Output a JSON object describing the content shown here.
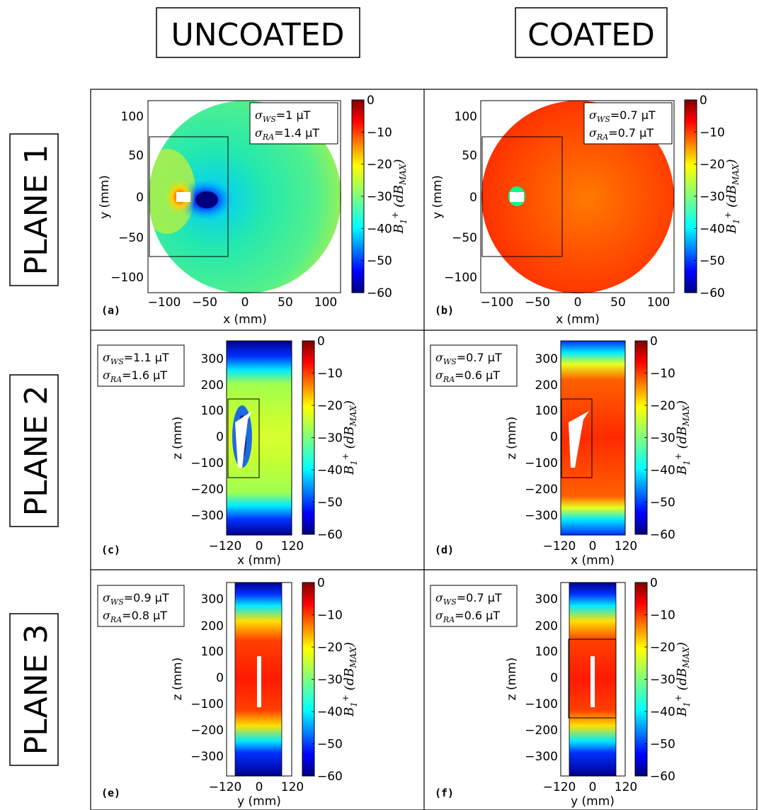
{
  "header": {
    "col1": "UNCOATED",
    "col2": "COATED"
  },
  "rows": {
    "row1": "PLANE 1",
    "row2": "PLANE 2",
    "row3": "PLANE 3"
  },
  "colorbar": {
    "ticks": [
      "0",
      "−10",
      "−20",
      "−30",
      "−40",
      "−50",
      "−60"
    ],
    "label": "B1+ (dB_MAX)",
    "range": [
      -60,
      0
    ],
    "colormap": "jet"
  },
  "chart_data": [
    {
      "type": "heatmap",
      "panel": "(a)",
      "column": "UNCOATED",
      "plane": "PLANE 1",
      "xlabel": "x (mm)",
      "ylabel": "y (mm)",
      "xticks": [
        "−100",
        "−50",
        "0",
        "50",
        "100"
      ],
      "yticks": [
        "100",
        "50",
        "0",
        "−50",
        "−100"
      ],
      "stats": {
        "ws": "1 μT",
        "ra": "1.4 μT"
      }
    },
    {
      "type": "heatmap",
      "panel": "(b)",
      "column": "COATED",
      "plane": "PLANE 1",
      "xlabel": "x (mm)",
      "ylabel": "y (mm)",
      "xticks": [
        "−100",
        "−50",
        "0",
        "50",
        "100"
      ],
      "yticks": [
        "100",
        "50",
        "0",
        "−50",
        "−100"
      ],
      "stats": {
        "ws": "0.7 μT",
        "ra": "0.7 μT"
      }
    },
    {
      "type": "heatmap",
      "panel": "(c)",
      "column": "UNCOATED",
      "plane": "PLANE 2",
      "xlabel": "x (mm)",
      "ylabel": "z (mm)",
      "xticks": [
        "−120",
        "0",
        "120"
      ],
      "yticks": [
        "300",
        "200",
        "100",
        "0",
        "−100",
        "−200",
        "−300"
      ],
      "stats": {
        "ws": "1.1 μT",
        "ra": "1.6 μT"
      }
    },
    {
      "type": "heatmap",
      "panel": "(d)",
      "column": "COATED",
      "plane": "PLANE 2",
      "xlabel": "x (mm)",
      "ylabel": "z (mm)",
      "xticks": [
        "−120",
        "0",
        "120"
      ],
      "yticks": [
        "300",
        "200",
        "100",
        "0",
        "−100",
        "−200",
        "−300"
      ],
      "stats": {
        "ws": "0.7 μT",
        "ra": "0.6 μT"
      }
    },
    {
      "type": "heatmap",
      "panel": "(e)",
      "column": "UNCOATED",
      "plane": "PLANE 3",
      "xlabel": "y (mm)",
      "ylabel": "z (mm)",
      "xticks": [
        "−120",
        "0",
        "120"
      ],
      "yticks": [
        "300",
        "200",
        "100",
        "0",
        "−100",
        "−200",
        "−300"
      ],
      "stats": {
        "ws": "0.9 μT",
        "ra": "0.8 μT"
      }
    },
    {
      "type": "heatmap",
      "panel": "(f)",
      "column": "COATED",
      "plane": "PLANE 3",
      "xlabel": "y (mm)",
      "ylabel": "z (mm)",
      "xticks": [
        "−120",
        "0",
        "120"
      ],
      "yticks": [
        "300",
        "200",
        "100",
        "0",
        "−100",
        "−200",
        "−300"
      ],
      "stats": {
        "ws": "0.7 μT",
        "ra": "0.6 μT"
      }
    }
  ]
}
